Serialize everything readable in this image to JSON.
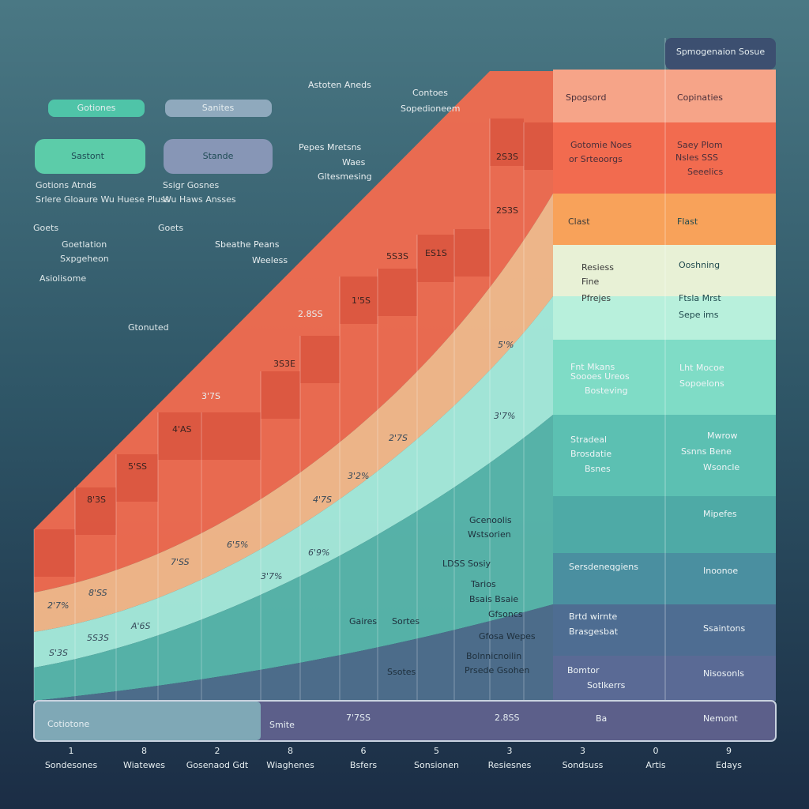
{
  "tag": "Spmogenaion Sosue",
  "pills": [
    "Gotiones",
    "Sanites"
  ],
  "buttons": [
    "Sastont",
    "Stande"
  ],
  "left_notes": [
    "Gotions Atnds",
    "Srlere Gloaure Wu Huese Pluss",
    "Ssigr Gosnes",
    "Wu Haws Ansses",
    "Goets",
    "Goets",
    "Goetlation",
    "Sxpgeheon",
    "Asiolisome",
    "Gtonuted"
  ],
  "annotations": [
    "Astoten Aneds",
    "Contoes",
    "Sopedioneem",
    "Pepes Mretsns",
    "Waes",
    "Gltesmesing",
    "Sbeathe Peans",
    "Weeless",
    "2.8SS",
    "3'7S"
  ],
  "step_labels": [
    "8'3S",
    "5'SS",
    "4'AS",
    "3S3E",
    "1'5S",
    "ES1S",
    "2S3S",
    "2S3S",
    "5S3S"
  ],
  "band_labels": [
    "2'7%",
    "8'SS",
    "5S3S",
    "S'3S",
    "6'9%",
    "4'7S",
    "3'7%",
    "6'5%",
    "2'7S",
    "3'2%",
    "5'%",
    "3'7%",
    "A'6S",
    "7'SS"
  ],
  "panel_left": [
    "Spogsord",
    "Gotomie Noes",
    "or Srteoorgs",
    "Clast",
    "Resiess",
    "Fine",
    "Pfrejes",
    "Fnt Mkans",
    "Soooes Ureos",
    "Bosteving",
    "Stradeal",
    "Brosdatie",
    "Bsnes",
    "Sersdeneqgiens",
    "Brtd wirnte",
    "Brasgesbat",
    "Bomtor",
    "Sotlkerrs",
    "Ba"
  ],
  "panel_right": [
    "Copinaties",
    "Saey Plom",
    "Nsles SSS",
    "Seeelics",
    "Flast",
    "Ooshning",
    "Ftsla Mrst",
    "Sepe ims",
    "Lht Mocoe",
    "Sopoelons",
    "Mwrow",
    "Ssnns Bene",
    "Wsoncle",
    "Mipefes",
    "Inoonoe",
    "Ssaintons",
    "Nisosonls",
    "Nemont"
  ],
  "middle_notes": [
    "Gcenoolis",
    "Wstsorien",
    "LDSS Sosiy",
    "Tarios",
    "Bsais Bsaie",
    "Gfsoncs",
    "Gfosa Wepes",
    "Bolnnicnoilin",
    "Prsede Gsohen",
    "Gaires",
    "Sortes",
    "Ssotes"
  ],
  "bottom_bar": [
    "Cotiotone",
    "Smite",
    "7'7SS",
    "2.8SS"
  ],
  "axis": [
    {
      "n": 1,
      "label": "Sondesones"
    },
    {
      "n": 8,
      "label": "Wiatewes"
    },
    {
      "n": 2,
      "label": "Gosenaod Gdt"
    },
    {
      "n": 8,
      "label": "Wiaghenes"
    },
    {
      "n": 6,
      "label": "Bsfers"
    },
    {
      "n": 5,
      "label": "Sonsionen"
    },
    {
      "n": 3,
      "label": "Resiesnes"
    },
    {
      "n": 3,
      "label": "Sondsuss"
    },
    {
      "n": 0,
      "label": "Artis"
    },
    {
      "n": 9,
      "label": "Edays"
    }
  ]
}
